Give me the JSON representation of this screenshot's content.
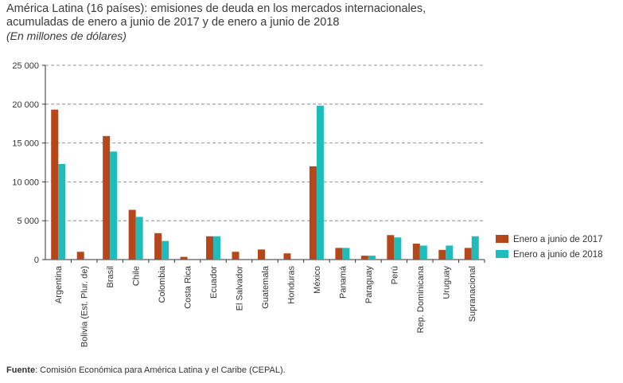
{
  "header": {
    "title_line1": "América Latina (16 países): emisiones de deuda en los mercados internacionales,",
    "title_line2": "acumuladas de enero a junio de 2017 y de enero a junio de 2018",
    "subtitle": "(En millones de dólares)"
  },
  "footer": {
    "source_label": "Fuente",
    "source_text": ": Comisión Económica para América Latina y el Caribe (CEPAL)."
  },
  "chart_data": {
    "type": "bar",
    "categories": [
      "Argentina",
      "Bolivia (Est. Plur. de)",
      "Brasil",
      "Chile",
      "Colombia",
      "Costa Rica",
      "Ecuador",
      "El Salvador",
      "Guatemala",
      "Honduras",
      "México",
      "Panamá",
      "Paraguay",
      "Perú",
      "Rep. Dominicana",
      "Uruguay",
      "Supranacional"
    ],
    "series": [
      {
        "name": "Enero a junio de 2017",
        "color": "#b5471b",
        "values": [
          19300,
          1000,
          15900,
          6400,
          3400,
          350,
          3000,
          1000,
          1300,
          800,
          12000,
          1500,
          500,
          3150,
          2050,
          1250,
          1500
        ]
      },
      {
        "name": "Enero a junio de 2018",
        "color": "#1fbcbc",
        "values": [
          12300,
          0,
          13900,
          5500,
          2400,
          0,
          3000,
          0,
          0,
          0,
          19800,
          1500,
          500,
          2850,
          1800,
          1800,
          3000
        ]
      }
    ],
    "yticks": [
      "0",
      "5 000",
      "10 000",
      "15 000",
      "20 000",
      "25 000"
    ],
    "ylim": [
      0,
      25000
    ],
    "grid": "dashed horizontal",
    "legend_position": "right"
  }
}
